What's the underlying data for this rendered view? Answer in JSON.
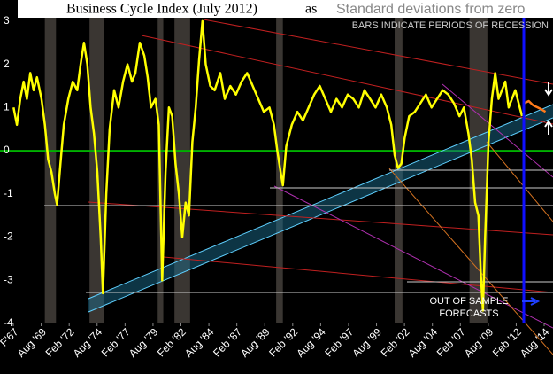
{
  "chart_data": {
    "type": "line",
    "title": "Business Cycle Index (July 2012)",
    "connector": "as",
    "subtitle": "Standard deviations from zero",
    "annotation_recession": "BARS INDICATE PERIODS OF RECESSION",
    "annotation_forecast": "OUT OF SAMPLE FORECASTS",
    "xlim": [
      1965.89,
      2015.37
    ],
    "ylim": [
      -4,
      3.49
    ],
    "yticks": [
      -4,
      -3,
      -2,
      -1,
      0,
      1,
      2,
      3
    ],
    "xticks": [
      {
        "value": 1967.08,
        "label": "F'67"
      },
      {
        "value": 1969.58,
        "label": "Aug '69"
      },
      {
        "value": 1972.08,
        "label": "Feb '72"
      },
      {
        "value": 1974.58,
        "label": "Aug '74"
      },
      {
        "value": 1977.08,
        "label": "Feb '77"
      },
      {
        "value": 1979.58,
        "label": "Aug '79"
      },
      {
        "value": 1982.08,
        "label": "Feb '82"
      },
      {
        "value": 1984.58,
        "label": "Aug '84"
      },
      {
        "value": 1987.08,
        "label": "Feb '87"
      },
      {
        "value": 1989.58,
        "label": "Aug '89"
      },
      {
        "value": 1992.08,
        "label": "Feb '92"
      },
      {
        "value": 1994.58,
        "label": "Aug '94"
      },
      {
        "value": 1997.08,
        "label": "Feb '97"
      },
      {
        "value": 1999.58,
        "label": "Aug '99"
      },
      {
        "value": 2002.08,
        "label": "Feb '02"
      },
      {
        "value": 2004.58,
        "label": "Aug '04"
      },
      {
        "value": 2007.08,
        "label": "Feb '07"
      },
      {
        "value": 2009.58,
        "label": "Aug '09"
      },
      {
        "value": 2012.08,
        "label": "Feb '12"
      },
      {
        "value": 2014.58,
        "label": "Aug '14"
      }
    ],
    "zero_line_color": "#00b000",
    "recession_color": "#3a3632",
    "recessions": [
      [
        1969.9,
        1970.9
      ],
      [
        1973.9,
        1975.2
      ],
      [
        1980.0,
        1980.5
      ],
      [
        1981.5,
        1982.9
      ],
      [
        1990.6,
        1991.2
      ],
      [
        2001.2,
        2001.9
      ],
      [
        2007.9,
        2009.5
      ]
    ],
    "series": [
      {
        "color": "#ffff00",
        "x": [
          1967.1,
          1967.4,
          1967.7,
          1968.0,
          1968.3,
          1968.6,
          1968.9,
          1969.2,
          1969.6,
          1969.9,
          1970.2,
          1970.5,
          1970.8,
          1971.0,
          1971.3,
          1971.6,
          1972.0,
          1972.4,
          1972.8,
          1973.1,
          1973.4,
          1973.7,
          1974.0,
          1974.3,
          1974.6,
          1974.9,
          1975.1,
          1975.4,
          1975.7,
          1976.1,
          1976.5,
          1976.9,
          1977.3,
          1977.7,
          1978.0,
          1978.4,
          1978.8,
          1979.1,
          1979.4,
          1979.8,
          1980.1,
          1980.4,
          1980.7,
          1981.0,
          1981.3,
          1981.6,
          1981.9,
          1982.2,
          1982.5,
          1982.8,
          1983.1,
          1983.4,
          1983.7,
          1984.0,
          1984.3,
          1984.7,
          1985.1,
          1985.6,
          1986.0,
          1986.5,
          1987.0,
          1987.5,
          1988.0,
          1988.5,
          1989.0,
          1989.5,
          1990.0,
          1990.4,
          1990.7,
          1991.0,
          1991.2,
          1991.5,
          1992.0,
          1992.5,
          1993.0,
          1993.5,
          1994.0,
          1994.5,
          1995.0,
          1995.5,
          1996.0,
          1996.5,
          1997.0,
          1997.5,
          1998.0,
          1998.5,
          1999.0,
          1999.5,
          2000.0,
          2000.5,
          2000.9,
          2001.2,
          2001.5,
          2001.8,
          2002.1,
          2002.5,
          2003.0,
          2003.5,
          2004.0,
          2004.5,
          2005.0,
          2005.5,
          2006.0,
          2006.5,
          2007.0,
          2007.4,
          2007.8,
          2008.1,
          2008.4,
          2008.7,
          2008.9,
          2009.1,
          2009.3,
          2009.6,
          2009.9,
          2010.2,
          2010.5,
          2010.8,
          2011.1,
          2011.4,
          2011.7,
          2012.0,
          2012.3,
          2012.6
        ],
        "values": [
          1.0,
          0.6,
          1.2,
          1.6,
          1.2,
          1.8,
          1.4,
          1.7,
          1.2,
          0.6,
          -0.2,
          -0.5,
          -1.0,
          -1.25,
          -0.3,
          0.6,
          1.2,
          1.6,
          1.4,
          2.0,
          2.5,
          2.0,
          1.0,
          0.4,
          -0.5,
          -2.0,
          -3.3,
          -1.0,
          0.5,
          1.4,
          1.0,
          1.6,
          2.0,
          1.6,
          1.8,
          2.5,
          2.2,
          1.7,
          1.0,
          1.2,
          0.6,
          -3.0,
          -0.5,
          1.0,
          0.8,
          -0.3,
          -1.0,
          -2.0,
          -1.2,
          -1.5,
          0.2,
          1.0,
          2.1,
          3.0,
          2.0,
          1.5,
          1.4,
          1.8,
          1.2,
          1.5,
          1.3,
          1.6,
          1.8,
          1.5,
          1.2,
          0.9,
          1.0,
          0.6,
          0.0,
          -0.5,
          -0.8,
          0.1,
          0.6,
          0.9,
          0.7,
          1.0,
          1.3,
          1.5,
          1.2,
          0.9,
          1.2,
          1.0,
          1.3,
          1.2,
          1.0,
          1.4,
          1.2,
          1.0,
          1.3,
          1.0,
          0.6,
          -0.1,
          -0.4,
          -0.3,
          0.3,
          0.8,
          0.9,
          1.1,
          1.3,
          1.0,
          1.2,
          1.4,
          1.3,
          1.1,
          0.8,
          1.0,
          0.4,
          -0.2,
          -1.2,
          -1.5,
          -2.8,
          -3.7,
          -2.0,
          0.2,
          1.2,
          1.8,
          1.2,
          1.4,
          1.6,
          1.0,
          1.2,
          1.4,
          1.1,
          0.8
        ]
      },
      {
        "color": "#ff7a1a",
        "x": [
          2012.8,
          2013.2,
          2013.6,
          2014.0,
          2014.4,
          2014.7
        ],
        "values": [
          1.1,
          1.15,
          1.05,
          1.0,
          0.95,
          0.9
        ]
      }
    ]
  }
}
